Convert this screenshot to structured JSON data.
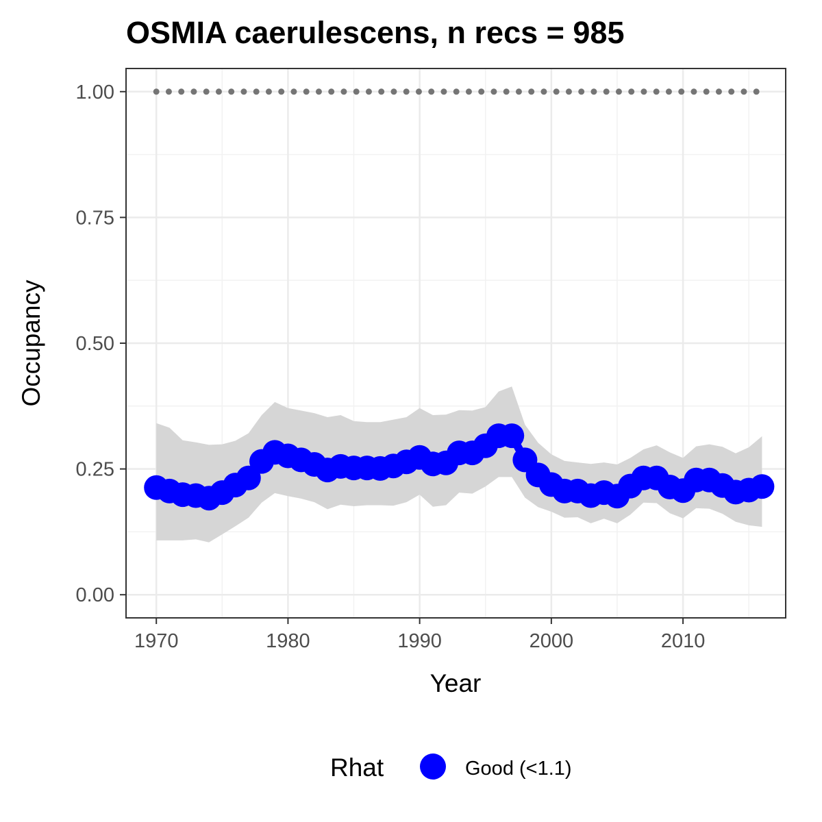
{
  "chart_data": {
    "type": "line",
    "title": "OSMIA caerulescens, n recs = 985",
    "xlabel": "Year",
    "ylabel": "Occupancy",
    "xlim": [
      1967.7,
      2017.8
    ],
    "ylim": [
      -0.046,
      1.046
    ],
    "x_ticks": [
      1970,
      1980,
      1990,
      2000,
      2010
    ],
    "x_tick_labels": [
      "1970",
      "1980",
      "1990",
      "2000",
      "2010"
    ],
    "y_ticks": [
      0.0,
      0.25,
      0.5,
      0.75,
      1.0
    ],
    "y_tick_labels": [
      "0.00",
      "0.25",
      "0.50",
      "0.75",
      "1.00"
    ],
    "grid": true,
    "legend": {
      "position": "bottom",
      "title": "Rhat",
      "entries": [
        {
          "label": "Good (<1.1)",
          "color": "#0000ff"
        }
      ]
    },
    "x": [
      1970,
      1971,
      1972,
      1973,
      1974,
      1975,
      1976,
      1977,
      1978,
      1979,
      1980,
      1981,
      1982,
      1983,
      1984,
      1985,
      1986,
      1987,
      1988,
      1989,
      1990,
      1991,
      1992,
      1993,
      1994,
      1995,
      1996,
      1997,
      1998,
      1999,
      2000,
      2001,
      2002,
      2003,
      2004,
      2005,
      2006,
      2007,
      2008,
      2009,
      2010,
      2011,
      2012,
      2013,
      2014,
      2015,
      2016
    ],
    "series": [
      {
        "name": "Good (<1.1)",
        "color": "#0000ff",
        "values": [
          0.213,
          0.206,
          0.199,
          0.197,
          0.192,
          0.203,
          0.218,
          0.232,
          0.265,
          0.283,
          0.276,
          0.268,
          0.259,
          0.248,
          0.255,
          0.252,
          0.252,
          0.251,
          0.256,
          0.264,
          0.273,
          0.26,
          0.262,
          0.282,
          0.282,
          0.296,
          0.316,
          0.316,
          0.268,
          0.238,
          0.219,
          0.206,
          0.206,
          0.197,
          0.203,
          0.196,
          0.216,
          0.232,
          0.232,
          0.214,
          0.207,
          0.228,
          0.228,
          0.217,
          0.204,
          0.208,
          0.215
        ],
        "lower": [
          0.108,
          0.108,
          0.108,
          0.11,
          0.104,
          0.12,
          0.136,
          0.153,
          0.183,
          0.202,
          0.196,
          0.191,
          0.184,
          0.17,
          0.179,
          0.176,
          0.178,
          0.178,
          0.177,
          0.184,
          0.199,
          0.175,
          0.178,
          0.203,
          0.201,
          0.215,
          0.234,
          0.234,
          0.193,
          0.174,
          0.165,
          0.153,
          0.154,
          0.142,
          0.151,
          0.142,
          0.159,
          0.183,
          0.182,
          0.162,
          0.152,
          0.172,
          0.171,
          0.161,
          0.145,
          0.138,
          0.135
        ],
        "upper": [
          0.341,
          0.332,
          0.307,
          0.303,
          0.298,
          0.299,
          0.306,
          0.321,
          0.357,
          0.383,
          0.371,
          0.366,
          0.361,
          0.353,
          0.357,
          0.345,
          0.343,
          0.343,
          0.348,
          0.353,
          0.371,
          0.357,
          0.358,
          0.367,
          0.366,
          0.373,
          0.404,
          0.414,
          0.338,
          0.302,
          0.279,
          0.266,
          0.263,
          0.26,
          0.263,
          0.259,
          0.272,
          0.289,
          0.297,
          0.283,
          0.272,
          0.295,
          0.299,
          0.294,
          0.281,
          0.293,
          0.315
        ]
      },
      {
        "name": "",
        "color": "#757575",
        "style": "dotted",
        "values": [
          1,
          1,
          1,
          1,
          1,
          1,
          1,
          1,
          1,
          1,
          1,
          1,
          1,
          1,
          1,
          1,
          1,
          1,
          1,
          1,
          1,
          1,
          1,
          1,
          1,
          1,
          1,
          1,
          1,
          1,
          1,
          1,
          1,
          1,
          1,
          1,
          1,
          1,
          1,
          1,
          1,
          1,
          1,
          1,
          1,
          1,
          1
        ]
      }
    ],
    "ribbon_color": "#d6d6d6"
  }
}
